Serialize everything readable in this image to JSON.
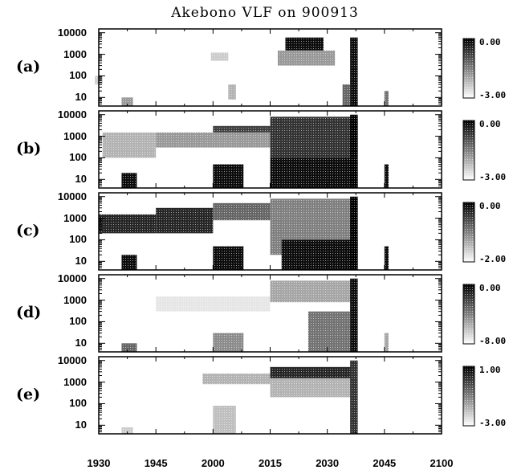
{
  "title": "Akebono VLF on 900913",
  "panels": [
    {
      "label": "(a)",
      "cbar_max": "0.00",
      "cbar_min": "-3.00"
    },
    {
      "label": "(b)",
      "cbar_max": "0.00",
      "cbar_min": "-3.00"
    },
    {
      "label": "(c)",
      "cbar_max": "0.00",
      "cbar_min": "-2.00"
    },
    {
      "label": "(d)",
      "cbar_max": "0.00",
      "cbar_min": "-8.00"
    },
    {
      "label": "(e)",
      "cbar_max": "1.00",
      "cbar_min": "-3.00"
    }
  ],
  "y_tick_labels": [
    "10000",
    "1000",
    "100",
    "10"
  ],
  "x_tick_labels": [
    "1930",
    "1945",
    "2000",
    "2015",
    "2030",
    "2045",
    "2100"
  ],
  "chart_data": {
    "type": "heatmap",
    "title": "Akebono VLF on 900913",
    "x_ticks": [
      "1930",
      "1945",
      "2000",
      "2015",
      "2030",
      "2045",
      "2100"
    ],
    "y_scale": "log",
    "y_ticks": [
      10,
      100,
      1000,
      10000
    ],
    "colormap": "white-to-black",
    "panels": [
      {
        "label": "(a)",
        "colorbar_range": [
          -3.0,
          0.0
        ],
        "blocks": [
          {
            "x": [
              2019,
              2029
            ],
            "y": [
              1500,
              6000
            ],
            "level": 0.95
          },
          {
            "x": [
              2017,
              2032
            ],
            "y": [
              300,
              1500
            ],
            "level": 0.4
          },
          {
            "x": [
              1998,
              2004
            ],
            "y": [
              500,
              1200
            ],
            "level": 0.2
          },
          {
            "x": [
              2004,
              2006
            ],
            "y": [
              8,
              40
            ],
            "level": 0.3
          },
          {
            "x": [
              1936,
              1939
            ],
            "y": [
              4,
              10
            ],
            "level": 0.4
          },
          {
            "x": [
              2034,
              2036
            ],
            "y": [
              4,
              40
            ],
            "level": 0.6
          },
          {
            "x": [
              2036,
              2038
            ],
            "y": [
              4,
              6000
            ],
            "level": 0.95
          },
          {
            "x": [
              2045,
              2049
            ],
            "y": [
              4,
              20
            ],
            "level": 0.55
          },
          {
            "x": [
              1929,
              1931
            ],
            "y": [
              40,
              100
            ],
            "level": 0.2
          }
        ]
      },
      {
        "label": "(b)",
        "colorbar_range": [
          -3.0,
          0.0
        ],
        "blocks": [
          {
            "x": [
              1931,
              1945
            ],
            "y": [
              100,
              1500
            ],
            "level": 0.3
          },
          {
            "x": [
              1945,
              2015
            ],
            "y": [
              300,
              1500
            ],
            "level": 0.4
          },
          {
            "x": [
              2000,
              2015
            ],
            "y": [
              1500,
              3000
            ],
            "level": 0.75
          },
          {
            "x": [
              2015,
              2038
            ],
            "y": [
              100,
              8000
            ],
            "level": 0.8
          },
          {
            "x": [
              2015,
              2038
            ],
            "y": [
              4,
              100
            ],
            "level": 0.95
          },
          {
            "x": [
              1936,
              1940
            ],
            "y": [
              4,
              20
            ],
            "level": 0.95
          },
          {
            "x": [
              2000,
              2008
            ],
            "y": [
              4,
              50
            ],
            "level": 0.95
          },
          {
            "x": [
              2045,
              2049
            ],
            "y": [
              4,
              50
            ],
            "level": 0.95
          },
          {
            "x": [
              2036,
              2038
            ],
            "y": [
              4,
              10000
            ],
            "level": 1.0
          }
        ]
      },
      {
        "label": "(c)",
        "colorbar_range": [
          -2.0,
          0.0
        ],
        "blocks": [
          {
            "x": [
              1930,
              1945
            ],
            "y": [
              200,
              1500
            ],
            "level": 0.85
          },
          {
            "x": [
              1945,
              2000
            ],
            "y": [
              200,
              3000
            ],
            "level": 0.85
          },
          {
            "x": [
              2000,
              2015
            ],
            "y": [
              800,
              5000
            ],
            "level": 0.6
          },
          {
            "x": [
              2015,
              2038
            ],
            "y": [
              20,
              8000
            ],
            "level": 0.5
          },
          {
            "x": [
              2018,
              2038
            ],
            "y": [
              4,
              100
            ],
            "level": 0.95
          },
          {
            "x": [
              1936,
              1940
            ],
            "y": [
              4,
              20
            ],
            "level": 0.95
          },
          {
            "x": [
              2000,
              2008
            ],
            "y": [
              4,
              50
            ],
            "level": 0.95
          },
          {
            "x": [
              2045,
              2049
            ],
            "y": [
              4,
              50
            ],
            "level": 0.95
          },
          {
            "x": [
              2036,
              2038
            ],
            "y": [
              4,
              10000
            ],
            "level": 1.0
          }
        ]
      },
      {
        "label": "(d)",
        "colorbar_range": [
          -8.0,
          0.0
        ],
        "blocks": [
          {
            "x": [
              1945,
              2015
            ],
            "y": [
              300,
              1500
            ],
            "level": 0.1
          },
          {
            "x": [
              2015,
              2037
            ],
            "y": [
              800,
              8000
            ],
            "level": 0.35
          },
          {
            "x": [
              2025,
              2036
            ],
            "y": [
              4,
              300
            ],
            "level": 0.55
          },
          {
            "x": [
              2000,
              2008
            ],
            "y": [
              4,
              30
            ],
            "level": 0.45
          },
          {
            "x": [
              1936,
              1940
            ],
            "y": [
              4,
              10
            ],
            "level": 0.6
          },
          {
            "x": [
              2045,
              2049
            ],
            "y": [
              4,
              30
            ],
            "level": 0.35
          },
          {
            "x": [
              2036,
              2038
            ],
            "y": [
              4,
              10000
            ],
            "level": 0.95
          }
        ]
      },
      {
        "label": "(e)",
        "colorbar_range": [
          -3.0,
          1.0
        ],
        "blocks": [
          {
            "x": [
              1990,
              2015
            ],
            "y": [
              800,
              2500
            ],
            "level": 0.3
          },
          {
            "x": [
              2015,
              2037
            ],
            "y": [
              1500,
              5000
            ],
            "level": 0.85
          },
          {
            "x": [
              2015,
              2037
            ],
            "y": [
              200,
              1500
            ],
            "level": 0.3
          },
          {
            "x": [
              2000,
              2006
            ],
            "y": [
              4,
              80
            ],
            "level": 0.25
          },
          {
            "x": [
              1936,
              1939
            ],
            "y": [
              4,
              8
            ],
            "level": 0.2
          },
          {
            "x": [
              2036,
              2038
            ],
            "y": [
              4,
              10000
            ],
            "level": 0.8
          }
        ]
      }
    ]
  }
}
